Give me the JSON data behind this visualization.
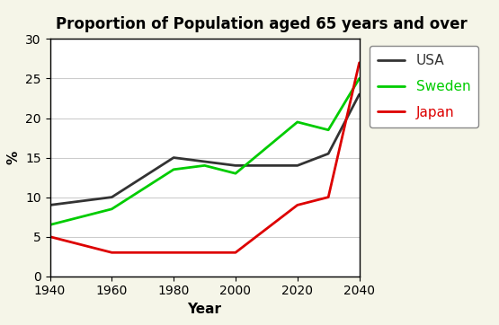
{
  "title": "Proportion of Population aged 65 years and over",
  "xlabel": "Year",
  "ylabel": "%",
  "years": [
    1940,
    1960,
    1980,
    1990,
    2000,
    2020,
    2030,
    2040
  ],
  "usa": [
    9,
    10,
    15,
    14.5,
    14,
    14,
    15.5,
    23
  ],
  "sweden": [
    6.5,
    8.5,
    13.5,
    14,
    13,
    19.5,
    18.5,
    25
  ],
  "japan": [
    5,
    3,
    3,
    3,
    3,
    9,
    10,
    27
  ],
  "usa_color": "#333333",
  "sweden_color": "#00cc00",
  "japan_color": "#dd0000",
  "ylim": [
    0,
    30
  ],
  "xlim": [
    1940,
    2040
  ],
  "xticks": [
    1940,
    1960,
    1980,
    2000,
    2020,
    2040
  ],
  "yticks": [
    0,
    5,
    10,
    15,
    20,
    25,
    30
  ],
  "outer_bg": "#f5f5e8",
  "plot_bg": "#ffffff",
  "legend_labels": [
    "USA",
    "Sweden",
    "Japan"
  ],
  "linewidth": 2.0,
  "title_fontsize": 12,
  "axis_label_fontsize": 11,
  "tick_fontsize": 10,
  "legend_fontsize": 11
}
